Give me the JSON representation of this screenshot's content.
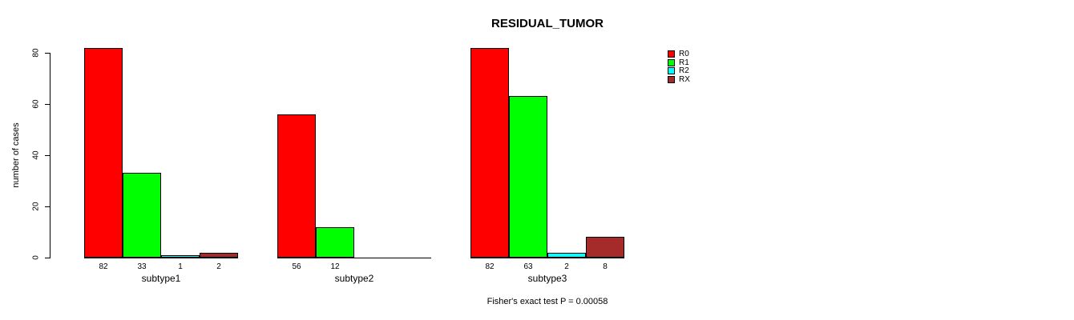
{
  "chart_data": {
    "type": "bar",
    "title": "RESIDUAL_TUMOR",
    "ylabel": "number of cases",
    "xlabel": "",
    "categories": [
      "subtype1",
      "subtype2",
      "subtype3"
    ],
    "series": [
      {
        "name": "R0",
        "color": "#ff0000",
        "values": [
          82,
          56,
          82
        ]
      },
      {
        "name": "R1",
        "color": "#00ff00",
        "values": [
          33,
          12,
          63
        ]
      },
      {
        "name": "R2",
        "color": "#00ffff",
        "values": [
          1,
          0,
          2
        ]
      },
      {
        "name": "RX",
        "color": "#a52a2a",
        "values": [
          2,
          0,
          8
        ]
      }
    ],
    "yticks": [
      0,
      20,
      40,
      60,
      80
    ],
    "ylim": [
      0,
      85
    ],
    "bar_value_labels_shown": true,
    "zero_values_unlabeled": true,
    "legend_position": "top-right",
    "grid": false,
    "annotation": "Fisher's exact test P = 0.00058"
  },
  "colors": {
    "axis": "#000000",
    "text": "#000000",
    "background": "#ffffff"
  }
}
